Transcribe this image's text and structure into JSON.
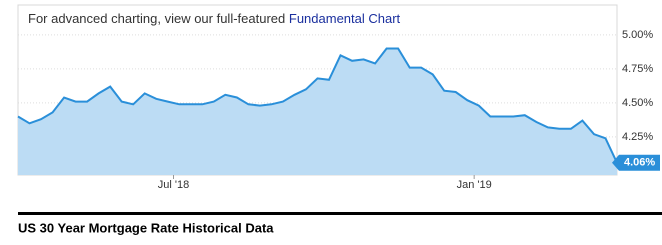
{
  "chart_data": {
    "type": "area",
    "banner_text": "For advanced charting, view our full-featured",
    "banner_link": "Fundamental Chart",
    "series": [
      {
        "name": "US 30 Year Mortgage Rate",
        "color": "#2a8fd9",
        "fill": "#bcdcf4",
        "values": [
          4.4,
          4.35,
          4.38,
          4.43,
          4.54,
          4.51,
          4.51,
          4.57,
          4.62,
          4.51,
          4.49,
          4.57,
          4.53,
          4.51,
          4.49,
          4.49,
          4.49,
          4.51,
          4.56,
          4.54,
          4.49,
          4.48,
          4.49,
          4.51,
          4.56,
          4.6,
          4.68,
          4.67,
          4.85,
          4.81,
          4.82,
          4.79,
          4.9,
          4.9,
          4.76,
          4.76,
          4.71,
          4.59,
          4.58,
          4.52,
          4.48,
          4.4,
          4.4,
          4.4,
          4.41,
          4.36,
          4.32,
          4.31,
          4.31,
          4.37,
          4.27,
          4.24,
          4.06
        ],
        "value_labels": [
          null,
          null,
          null,
          null,
          null,
          null,
          null,
          null,
          null,
          null,
          null,
          null,
          null,
          null,
          null,
          null,
          null,
          null,
          null,
          null,
          null,
          null,
          null,
          null,
          null,
          null,
          null,
          null,
          null,
          null,
          null,
          null,
          null,
          null,
          null,
          null,
          null,
          null,
          null,
          null,
          null,
          null,
          null,
          null,
          null,
          null,
          null,
          null,
          null,
          null,
          null,
          null,
          "4.06%"
        ]
      }
    ],
    "xlim": [
      0,
      52
    ],
    "xticks": [
      {
        "value": 13.5,
        "label": "Jul '18"
      },
      {
        "value": 39.6,
        "label": "Jan '19"
      }
    ],
    "ylim": [
      3.97,
      5.22
    ],
    "yticks": [
      {
        "value": 4.25,
        "label": "4.25%"
      },
      {
        "value": 4.5,
        "label": "4.50%"
      },
      {
        "value": 4.75,
        "label": "4.75%"
      },
      {
        "value": 5,
        "label": "5.00%"
      }
    ],
    "grid": true
  },
  "heading": "US 30 Year Mortgage Rate Historical Data"
}
